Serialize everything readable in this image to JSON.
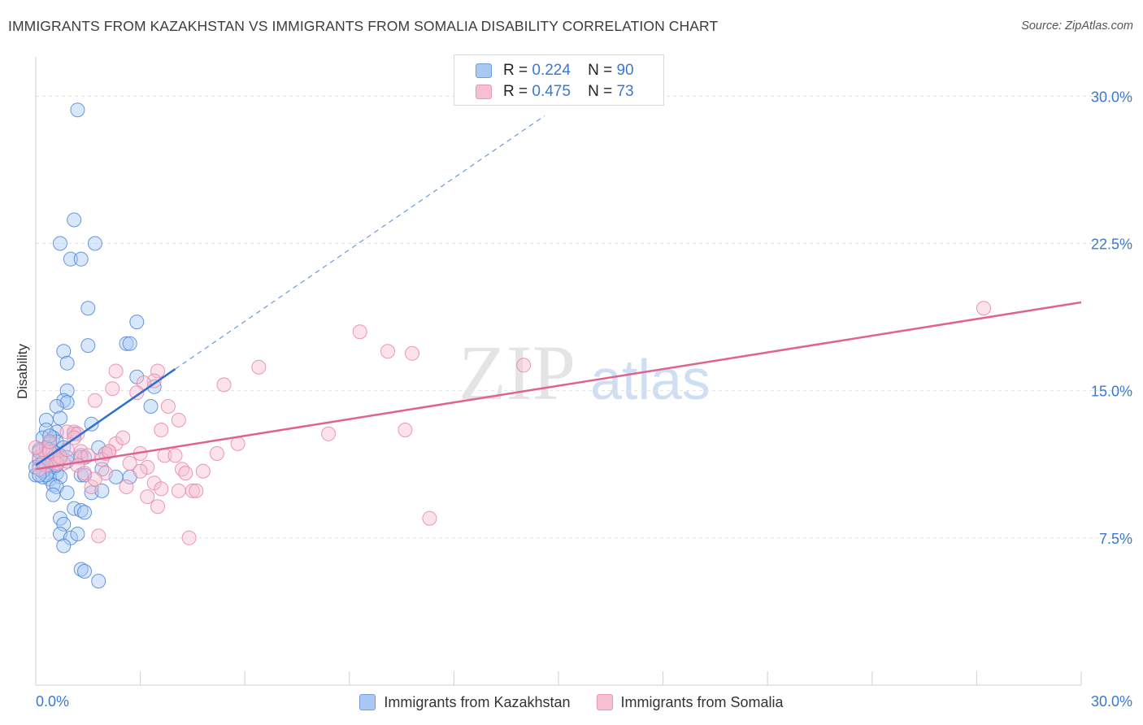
{
  "header": {
    "title": "IMMIGRANTS FROM KAZAKHSTAN VS IMMIGRANTS FROM SOMALIA DISABILITY CORRELATION CHART",
    "source": "Source: ZipAtlas.com"
  },
  "watermark": {
    "zip": "ZIP",
    "atlas": "atlas"
  },
  "legend": {
    "series1": {
      "r_label": "R =",
      "r_value": "0.224",
      "n_label": "N =",
      "n_value": "90"
    },
    "series2": {
      "r_label": "R =",
      "r_value": "0.475",
      "n_label": "N =",
      "n_value": "73"
    }
  },
  "colors": {
    "blue_fill": "#a9c9f3",
    "blue_stroke": "#4f86d6",
    "blue_line": "#2e6fcf",
    "pink_fill": "#f7bfd2",
    "pink_stroke": "#e786a8",
    "pink_line": "#e0638f",
    "tick_text": "#3b78cf"
  },
  "chart_data": {
    "type": "scatter",
    "title": "IMMIGRANTS FROM KAZAKHSTAN VS IMMIGRANTS FROM SOMALIA DISABILITY CORRELATION CHART",
    "xlabel": "",
    "ylabel": "Disability",
    "xlim": [
      0,
      30
    ],
    "ylim": [
      0,
      32
    ],
    "x_tick_labels": [
      "0.0%",
      "30.0%"
    ],
    "y_ticks": [
      {
        "value": 7.5,
        "label": "7.5%"
      },
      {
        "value": 15.0,
        "label": "15.0%"
      },
      {
        "value": 22.5,
        "label": "22.5%"
      },
      {
        "value": 30.0,
        "label": "30.0%"
      }
    ],
    "series": [
      {
        "name": "Immigrants from Kazakhstan",
        "color": "blue",
        "r": 0.224,
        "n": 90,
        "trend": {
          "x0": 0.0,
          "y0": 11.2,
          "x1": 4.0,
          "y1": 16.1,
          "dashed_to_x": 14.6,
          "dashed_to_y": 29.0
        },
        "points": [
          [
            1.2,
            29.3
          ],
          [
            1.1,
            23.7
          ],
          [
            0.7,
            22.5
          ],
          [
            1.7,
            22.5
          ],
          [
            1.0,
            21.7
          ],
          [
            1.3,
            21.7
          ],
          [
            1.5,
            19.2
          ],
          [
            2.9,
            18.5
          ],
          [
            1.5,
            17.3
          ],
          [
            2.6,
            17.4
          ],
          [
            2.7,
            17.4
          ],
          [
            0.8,
            17.0
          ],
          [
            0.9,
            16.4
          ],
          [
            2.9,
            15.7
          ],
          [
            3.4,
            15.2
          ],
          [
            0.9,
            15.0
          ],
          [
            0.8,
            14.5
          ],
          [
            0.9,
            14.4
          ],
          [
            0.6,
            14.2
          ],
          [
            3.3,
            14.2
          ],
          [
            0.3,
            13.5
          ],
          [
            0.7,
            13.6
          ],
          [
            1.6,
            13.3
          ],
          [
            0.3,
            13.0
          ],
          [
            0.6,
            12.9
          ],
          [
            0.5,
            12.6
          ],
          [
            0.4,
            12.4
          ],
          [
            0.6,
            12.4
          ],
          [
            0.8,
            12.1
          ],
          [
            1.1,
            12.8
          ],
          [
            0.2,
            12.6
          ],
          [
            0.4,
            12.3
          ],
          [
            1.8,
            12.1
          ],
          [
            0.1,
            12.0
          ],
          [
            0.3,
            11.9
          ],
          [
            0.6,
            11.8
          ],
          [
            0.2,
            11.6
          ],
          [
            0.4,
            11.5
          ],
          [
            0.1,
            11.5
          ],
          [
            0.5,
            11.4
          ],
          [
            0.9,
            11.4
          ],
          [
            1.3,
            11.7
          ],
          [
            1.4,
            11.6
          ],
          [
            2.0,
            11.8
          ],
          [
            0.1,
            11.2
          ],
          [
            0.3,
            11.1
          ],
          [
            0.5,
            11.1
          ],
          [
            1.3,
            10.7
          ],
          [
            0.2,
            10.9
          ],
          [
            0.4,
            10.8
          ],
          [
            0.6,
            10.8
          ],
          [
            0.0,
            10.7
          ],
          [
            0.2,
            10.6
          ],
          [
            0.4,
            10.5
          ],
          [
            0.7,
            10.6
          ],
          [
            1.4,
            10.7
          ],
          [
            1.9,
            11.0
          ],
          [
            2.3,
            10.6
          ],
          [
            2.7,
            10.6
          ],
          [
            0.5,
            10.2
          ],
          [
            0.6,
            10.1
          ],
          [
            1.6,
            9.8
          ],
          [
            0.5,
            9.7
          ],
          [
            0.9,
            9.8
          ],
          [
            1.1,
            9.0
          ],
          [
            1.3,
            8.9
          ],
          [
            1.9,
            9.9
          ],
          [
            1.4,
            8.8
          ],
          [
            0.7,
            8.5
          ],
          [
            0.8,
            8.2
          ],
          [
            0.7,
            7.7
          ],
          [
            1.0,
            7.5
          ],
          [
            1.2,
            7.7
          ],
          [
            0.8,
            7.1
          ],
          [
            1.3,
            5.9
          ],
          [
            1.4,
            5.8
          ],
          [
            1.8,
            5.3
          ],
          [
            0.1,
            11.9
          ],
          [
            0.3,
            12.1
          ],
          [
            0.5,
            11.9
          ],
          [
            0.2,
            10.9
          ],
          [
            0.4,
            11.4
          ],
          [
            0.0,
            11.1
          ],
          [
            0.6,
            11.2
          ],
          [
            0.3,
            10.7
          ],
          [
            0.7,
            11.7
          ],
          [
            0.2,
            11.3
          ],
          [
            0.4,
            12.7
          ],
          [
            0.1,
            10.7
          ],
          [
            0.9,
            11.6
          ]
        ]
      },
      {
        "name": "Immigrants from Somalia",
        "color": "pink",
        "r": 0.475,
        "n": 73,
        "trend": {
          "x0": 0.0,
          "y0": 11.0,
          "x1": 30.0,
          "y1": 19.5
        },
        "points": [
          [
            27.2,
            19.2
          ],
          [
            9.3,
            18.0
          ],
          [
            10.1,
            17.0
          ],
          [
            10.8,
            16.9
          ],
          [
            14.0,
            16.3
          ],
          [
            6.4,
            16.2
          ],
          [
            3.5,
            16.0
          ],
          [
            2.3,
            16.0
          ],
          [
            3.4,
            15.5
          ],
          [
            3.1,
            15.4
          ],
          [
            5.4,
            15.3
          ],
          [
            2.2,
            15.1
          ],
          [
            2.9,
            14.9
          ],
          [
            1.7,
            14.5
          ],
          [
            3.8,
            14.2
          ],
          [
            4.1,
            13.5
          ],
          [
            3.6,
            13.0
          ],
          [
            10.6,
            13.0
          ],
          [
            0.9,
            12.9
          ],
          [
            1.1,
            12.9
          ],
          [
            1.2,
            12.8
          ],
          [
            8.4,
            12.8
          ],
          [
            1.1,
            12.6
          ],
          [
            5.8,
            12.3
          ],
          [
            2.3,
            12.3
          ],
          [
            2.5,
            12.6
          ],
          [
            1.3,
            11.9
          ],
          [
            2.1,
            11.9
          ],
          [
            2.0,
            11.8
          ],
          [
            5.2,
            11.8
          ],
          [
            3.0,
            11.8
          ],
          [
            3.7,
            11.7
          ],
          [
            1.3,
            11.6
          ],
          [
            1.9,
            11.5
          ],
          [
            0.6,
            11.5
          ],
          [
            0.8,
            11.3
          ],
          [
            0.3,
            11.8
          ],
          [
            0.5,
            11.5
          ],
          [
            0.1,
            11.6
          ],
          [
            1.2,
            11.2
          ],
          [
            2.7,
            11.3
          ],
          [
            3.2,
            11.1
          ],
          [
            4.0,
            11.7
          ],
          [
            4.2,
            11.0
          ],
          [
            4.3,
            10.8
          ],
          [
            4.8,
            10.9
          ],
          [
            1.4,
            10.8
          ],
          [
            2.0,
            10.8
          ],
          [
            3.4,
            10.3
          ],
          [
            2.6,
            10.1
          ],
          [
            3.6,
            10.0
          ],
          [
            4.5,
            9.9
          ],
          [
            4.6,
            9.9
          ],
          [
            4.1,
            9.9
          ],
          [
            3.2,
            9.6
          ],
          [
            3.5,
            9.1
          ],
          [
            11.3,
            8.5
          ],
          [
            1.8,
            7.6
          ],
          [
            4.4,
            7.5
          ],
          [
            0.2,
            12.0
          ],
          [
            0.4,
            11.9
          ],
          [
            0.6,
            11.3
          ],
          [
            0.0,
            12.1
          ],
          [
            0.3,
            11.2
          ],
          [
            0.7,
            11.6
          ],
          [
            1.5,
            11.7
          ],
          [
            1.6,
            10.1
          ],
          [
            3.0,
            10.9
          ],
          [
            0.9,
            12.0
          ],
          [
            0.4,
            12.4
          ],
          [
            2.1,
            11.9
          ],
          [
            0.1,
            11.0
          ],
          [
            1.7,
            10.5
          ]
        ]
      }
    ]
  }
}
